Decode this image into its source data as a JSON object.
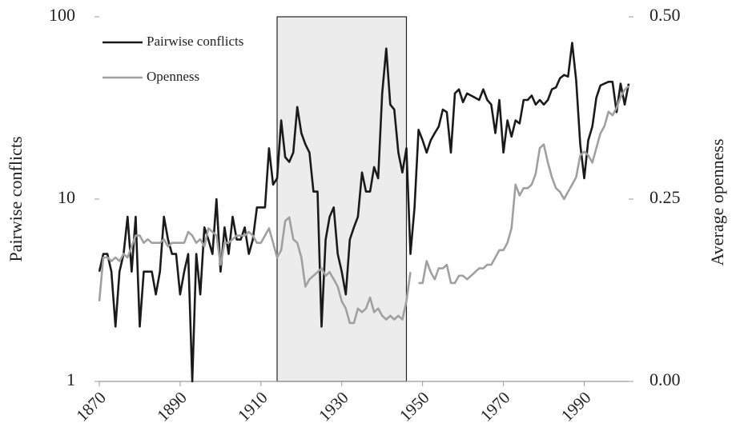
{
  "chart_data": {
    "type": "line",
    "x": [
      1870,
      1871,
      1872,
      1873,
      1874,
      1875,
      1876,
      1877,
      1878,
      1879,
      1880,
      1881,
      1882,
      1883,
      1884,
      1885,
      1886,
      1887,
      1888,
      1889,
      1890,
      1891,
      1892,
      1893,
      1894,
      1895,
      1896,
      1897,
      1898,
      1899,
      1900,
      1901,
      1902,
      1903,
      1904,
      1905,
      1906,
      1907,
      1908,
      1909,
      1910,
      1911,
      1912,
      1913,
      1914,
      1915,
      1916,
      1917,
      1918,
      1919,
      1920,
      1921,
      1922,
      1923,
      1924,
      1925,
      1926,
      1927,
      1928,
      1929,
      1930,
      1931,
      1932,
      1933,
      1934,
      1935,
      1936,
      1937,
      1938,
      1939,
      1940,
      1941,
      1942,
      1943,
      1944,
      1945,
      1946,
      1947,
      1948,
      1949,
      1950,
      1951,
      1952,
      1953,
      1954,
      1955,
      1956,
      1957,
      1958,
      1959,
      1960,
      1961,
      1962,
      1963,
      1964,
      1965,
      1966,
      1967,
      1968,
      1969,
      1970,
      1971,
      1972,
      1973,
      1974,
      1975,
      1976,
      1977,
      1978,
      1979,
      1980,
      1981,
      1982,
      1983,
      1984,
      1985,
      1986,
      1987,
      1988,
      1989,
      1990,
      1991,
      1992,
      1993,
      1994,
      1995,
      1996,
      1997,
      1998,
      1999,
      2000,
      2001
    ],
    "series": [
      {
        "name": "Pairwise conflicts",
        "color": "#1a1a1a",
        "axis": "y",
        "values": [
          4,
          5,
          5,
          4,
          2,
          4,
          5,
          8,
          4,
          8,
          2,
          4,
          4,
          4,
          3,
          4,
          8,
          6,
          5,
          5,
          3,
          4,
          5,
          1,
          5,
          3,
          7,
          6,
          5,
          10,
          4,
          7,
          5,
          8,
          6,
          6,
          7,
          5,
          6,
          9,
          9,
          9,
          19,
          12,
          13,
          27,
          17,
          16,
          18,
          32,
          23,
          20,
          18,
          11,
          11,
          2,
          6,
          8,
          9,
          5,
          4,
          3,
          6,
          7,
          8,
          14,
          11,
          11,
          15,
          13,
          38,
          67,
          33,
          31,
          18,
          14,
          19,
          5,
          9,
          24,
          21,
          18,
          21,
          23,
          25,
          31,
          30,
          18,
          38,
          40,
          34,
          38,
          37,
          36,
          35,
          40,
          35,
          33,
          23,
          35,
          18,
          27,
          22,
          27,
          26,
          35,
          35,
          37,
          33,
          35,
          33,
          35,
          40,
          41,
          46,
          48,
          47,
          72,
          45,
          20,
          13,
          21,
          25,
          36,
          42,
          43,
          44,
          44,
          30,
          43,
          33,
          43
        ]
      },
      {
        "name": "Openness",
        "color": "#a0a0a0",
        "axis": "y2",
        "values": [
          0.11,
          0.17,
          0.17,
          0.165,
          0.17,
          0.165,
          0.175,
          0.17,
          0.185,
          0.2,
          0.2,
          0.19,
          0.195,
          0.19,
          0.19,
          0.19,
          0.195,
          0.185,
          0.19,
          0.19,
          0.19,
          0.19,
          0.205,
          0.2,
          0.19,
          0.195,
          0.185,
          0.21,
          0.205,
          0.2,
          0.16,
          0.19,
          0.19,
          0.195,
          0.2,
          0.2,
          0.2,
          0.205,
          0.2,
          0.19,
          0.19,
          0.2,
          0.21,
          0.19,
          0.17,
          0.18,
          0.22,
          0.225,
          0.195,
          0.19,
          0.17,
          0.13,
          0.14,
          0.145,
          0.15,
          0.155,
          0.145,
          0.15,
          0.14,
          0.13,
          0.11,
          0.1,
          0.08,
          0.08,
          0.1,
          0.095,
          0.1,
          0.115,
          0.095,
          0.1,
          0.09,
          0.085,
          0.09,
          0.085,
          0.09,
          0.085,
          0.11,
          0.15,
          null,
          0.135,
          0.135,
          0.165,
          0.15,
          0.14,
          0.155,
          0.155,
          0.16,
          0.135,
          0.135,
          0.145,
          0.145,
          0.14,
          0.145,
          0.15,
          0.155,
          0.155,
          0.16,
          0.16,
          0.17,
          0.18,
          0.18,
          0.19,
          0.21,
          0.27,
          0.255,
          0.265,
          0.265,
          0.27,
          0.285,
          0.32,
          0.325,
          0.3,
          0.28,
          0.265,
          0.26,
          0.25,
          0.26,
          0.27,
          0.28,
          0.31,
          0.315,
          0.31,
          0.3,
          0.32,
          0.34,
          0.35,
          0.37,
          0.365,
          0.375,
          0.39,
          0.4,
          0.405
        ]
      }
    ],
    "ylabel": "Pairwise conflicts",
    "y2label": "Average openness",
    "xlim": [
      1870,
      2001
    ],
    "xticks": [
      1870,
      1890,
      1910,
      1930,
      1950,
      1970,
      1990
    ],
    "ylim": [
      1,
      100
    ],
    "yticks": [
      1,
      10,
      100
    ],
    "ylog": true,
    "y2lim": [
      0,
      0.5
    ],
    "y2ticks": [
      {
        "value": 0,
        "label": "0.00"
      },
      {
        "value": 0.25,
        "label": "0.25"
      },
      {
        "value": 0.5,
        "label": "0.50"
      }
    ],
    "shade_x": [
      1914,
      1946
    ],
    "shade_color": "#ececec",
    "legend": "upper left"
  }
}
